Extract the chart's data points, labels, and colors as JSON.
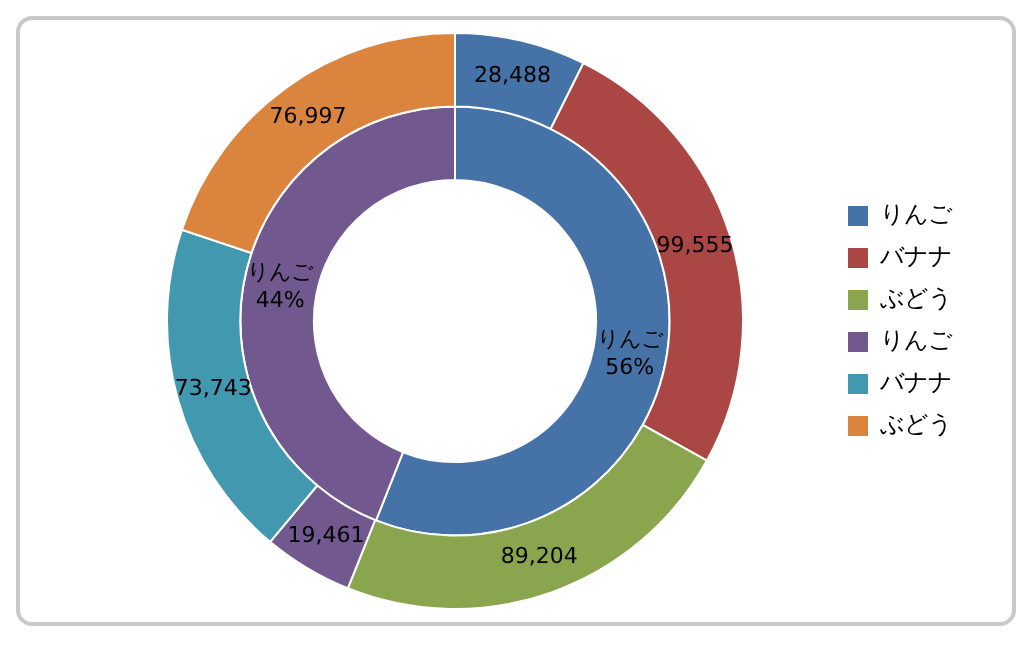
{
  "chart_data": {
    "type": "donut",
    "categories": [
      "りんご",
      "バナナ",
      "ぶどう",
      "りんご",
      "バナナ",
      "ぶどう"
    ],
    "legend": "right",
    "series": [
      {
        "values": [
          28488,
          99555,
          89204,
          19461,
          73743,
          76997
        ],
        "colors": [
          "#4572a7",
          "#aa4643",
          "#89a54e",
          "#71588f",
          "#4198af",
          "#db843d"
        ],
        "value_labels": [
          "28,488",
          "99,555",
          "89,204",
          "19,461",
          "73,743",
          "76,997"
        ]
      },
      {
        "values": [
          56,
          null,
          null,
          44,
          null,
          null
        ],
        "colors": [
          "#4572a7",
          null,
          null,
          "#71588f",
          null,
          null
        ],
        "value_labels": [
          "りんご\n56%",
          null,
          null,
          "りんご\n44%",
          null,
          null
        ]
      }
    ]
  }
}
